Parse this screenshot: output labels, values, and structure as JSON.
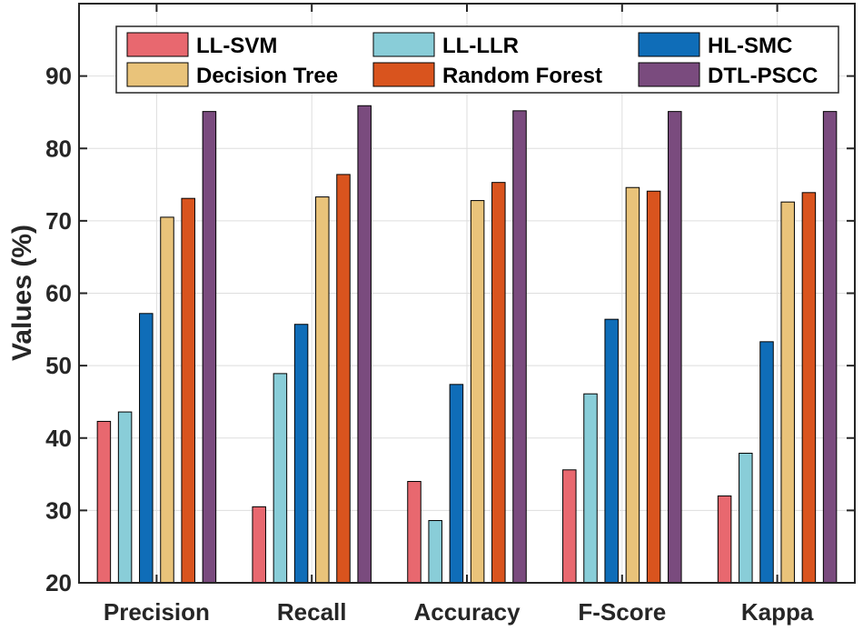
{
  "chart_data": {
    "type": "bar",
    "title": "",
    "xlabel": "",
    "ylabel": "Values (%)",
    "ylim": [
      20,
      100
    ],
    "yticks": [
      20,
      30,
      40,
      50,
      60,
      70,
      80,
      90
    ],
    "grid": true,
    "legend_position": "top",
    "categories": [
      "Precision",
      "Recall",
      "Accuracy",
      "F-Score",
      "Kappa"
    ],
    "series": [
      {
        "name": "LL-SVM",
        "color": "#E8686F",
        "values": [
          42.3,
          30.5,
          34.0,
          35.6,
          32.0
        ]
      },
      {
        "name": "LL-LLR",
        "color": "#89CDD8",
        "values": [
          43.6,
          48.9,
          28.6,
          46.1,
          37.9
        ]
      },
      {
        "name": "HL-SMC",
        "color": "#0F6DB8",
        "values": [
          57.2,
          55.7,
          47.4,
          56.4,
          53.3
        ]
      },
      {
        "name": "Decision Tree",
        "color": "#E9C37A",
        "values": [
          70.5,
          73.3,
          72.8,
          74.6,
          72.6
        ]
      },
      {
        "name": "Random Forest",
        "color": "#D9541E",
        "values": [
          73.1,
          76.4,
          75.3,
          74.1,
          73.9
        ]
      },
      {
        "name": "DTL-PSCC",
        "color": "#7A4B7E",
        "values": [
          85.1,
          85.9,
          85.2,
          85.1,
          85.1
        ]
      }
    ]
  }
}
